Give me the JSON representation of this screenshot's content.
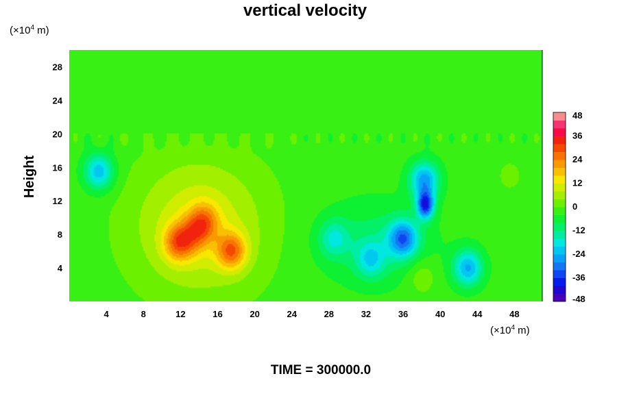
{
  "chart_data": {
    "type": "heatmap",
    "title": "vertical velocity",
    "ylabel": "Height",
    "y_unit_text": "(×10",
    "y_unit_exp": "4",
    "y_unit_suffix": " m)",
    "x_unit_text": "(×10",
    "x_unit_exp": "4",
    "x_unit_suffix": " m)",
    "xlim": [
      0,
      51
    ],
    "ylim": [
      0,
      30
    ],
    "x_ticks": [
      "4",
      "8",
      "12",
      "16",
      "20",
      "24",
      "28",
      "32",
      "36",
      "40",
      "44",
      "48"
    ],
    "y_ticks": [
      "4",
      "8",
      "12",
      "16",
      "20",
      "24",
      "28"
    ],
    "colorbar": {
      "min": -48,
      "max": 48,
      "step": 4,
      "labels": [
        "48",
        "36",
        "24",
        "12",
        "0",
        "-12",
        "-24",
        "-36",
        "-48"
      ],
      "colors": [
        "#7b00a0",
        "#2a00c8",
        "#0020f0",
        "#1a6cf4",
        "#00b4f8",
        "#00e8e0",
        "#00f07c",
        "#10f028",
        "#60f000",
        "#b8f000",
        "#f8e800",
        "#f8a800",
        "#f86c00",
        "#f02800",
        "#f80060",
        "#f88c8c"
      ]
    },
    "features": [
      {
        "x": 11.8,
        "y": 7.0,
        "value": 28
      },
      {
        "x": 14.5,
        "y": 9.5,
        "value": 22
      },
      {
        "x": 17.5,
        "y": 6.0,
        "value": 30
      },
      {
        "x": 13.5,
        "y": 8.0,
        "value": 14
      },
      {
        "x": 3.2,
        "y": 15.5,
        "value": -28
      },
      {
        "x": 28.5,
        "y": 7.5,
        "value": -16
      },
      {
        "x": 32.5,
        "y": 5.0,
        "value": -18
      },
      {
        "x": 36.0,
        "y": 7.5,
        "value": -34
      },
      {
        "x": 38.3,
        "y": 14.5,
        "value": -32
      },
      {
        "x": 38.4,
        "y": 11.5,
        "value": -46
      },
      {
        "x": 43.0,
        "y": 4.0,
        "value": -30
      },
      {
        "x": 38.0,
        "y": 3.0,
        "value": 8
      },
      {
        "x": 47.5,
        "y": 15.0,
        "value": 4
      }
    ],
    "footer": "TIME = 300000.0"
  }
}
